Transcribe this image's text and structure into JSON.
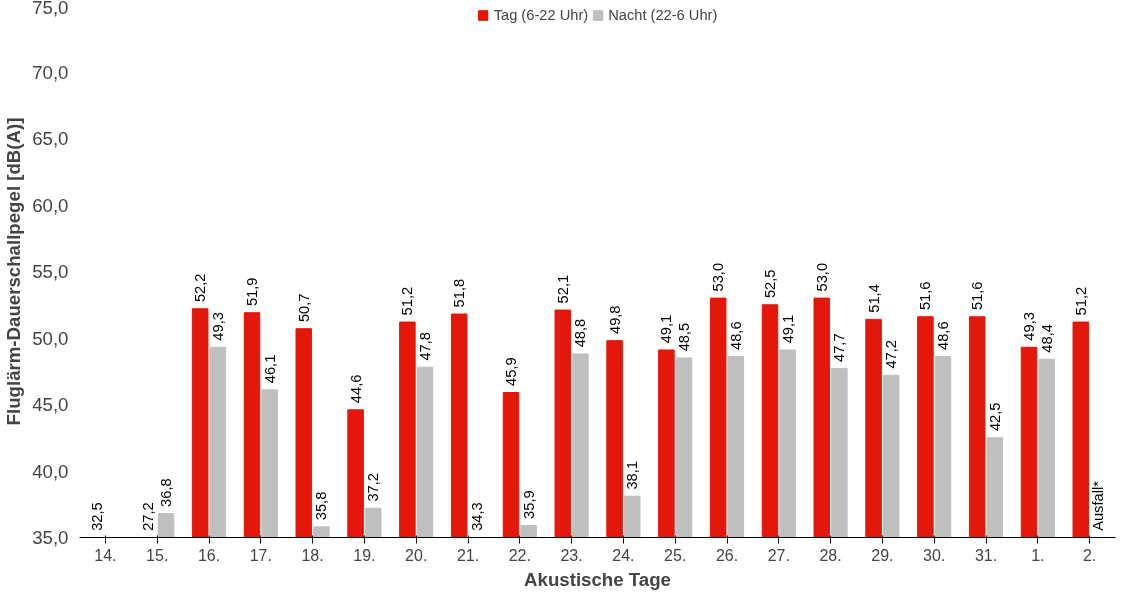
{
  "chart_data": {
    "type": "bar",
    "xlabel": "Akustische Tage",
    "ylabel": "Fluglärm-Dauerschallpegel [dB(A)]",
    "categories": [
      "14.",
      "15.",
      "16.",
      "17.",
      "18.",
      "19.",
      "20.",
      "21.",
      "22.",
      "23.",
      "24.",
      "25.",
      "26.",
      "27.",
      "28.",
      "29.",
      "30.",
      "31.",
      "1.",
      "2."
    ],
    "series": [
      {
        "name": "Tag (6-22 Uhr)",
        "color": "#e3170a",
        "values": [
          null,
          null,
          52.2,
          51.9,
          50.7,
          44.6,
          51.2,
          51.8,
          45.9,
          52.1,
          49.8,
          49.1,
          53.0,
          52.5,
          53.0,
          51.4,
          51.6,
          51.6,
          49.3,
          51.2
        ],
        "value_labels": [
          "32,5",
          "27,2",
          "52,2",
          "51,9",
          "50,7",
          "44,6",
          "51,2",
          "51,8",
          "45,9",
          "52,1",
          "49,8",
          "49,1",
          "53,0",
          "52,5",
          "53,0",
          "51,4",
          "51,6",
          "51,6",
          "49,3",
          "51,2"
        ]
      },
      {
        "name": "Nacht (22-6 Uhr)",
        "color": "#bfbfbf",
        "values": [
          null,
          36.8,
          49.3,
          46.1,
          35.8,
          37.2,
          47.8,
          null,
          35.9,
          48.8,
          38.1,
          48.5,
          48.6,
          49.1,
          47.7,
          47.2,
          48.6,
          42.5,
          48.4,
          null
        ],
        "value_labels": [
          null,
          "36,8",
          "49,3",
          "46,1",
          "35,8",
          "37,2",
          "47,8",
          "34,3",
          "35,9",
          "48,8",
          "38,1",
          "48,5",
          "48,6",
          "49,1",
          "47,7",
          "47,2",
          "48,6",
          "42,5",
          "48,4",
          "Ausfall*"
        ]
      }
    ],
    "ylim": [
      35,
      75
    ],
    "yticks": [
      {
        "value": 35,
        "label": "35,0"
      },
      {
        "value": 40,
        "label": "40,0"
      },
      {
        "value": 45,
        "label": "45,0"
      },
      {
        "value": 50,
        "label": "50,0"
      },
      {
        "value": 55,
        "label": "55,0"
      },
      {
        "value": 60,
        "label": "60,0"
      },
      {
        "value": 65,
        "label": "65,0"
      },
      {
        "value": 70,
        "label": "70,0"
      },
      {
        "value": 75,
        "label": "75,0"
      }
    ],
    "grid": false,
    "legend": "top"
  }
}
